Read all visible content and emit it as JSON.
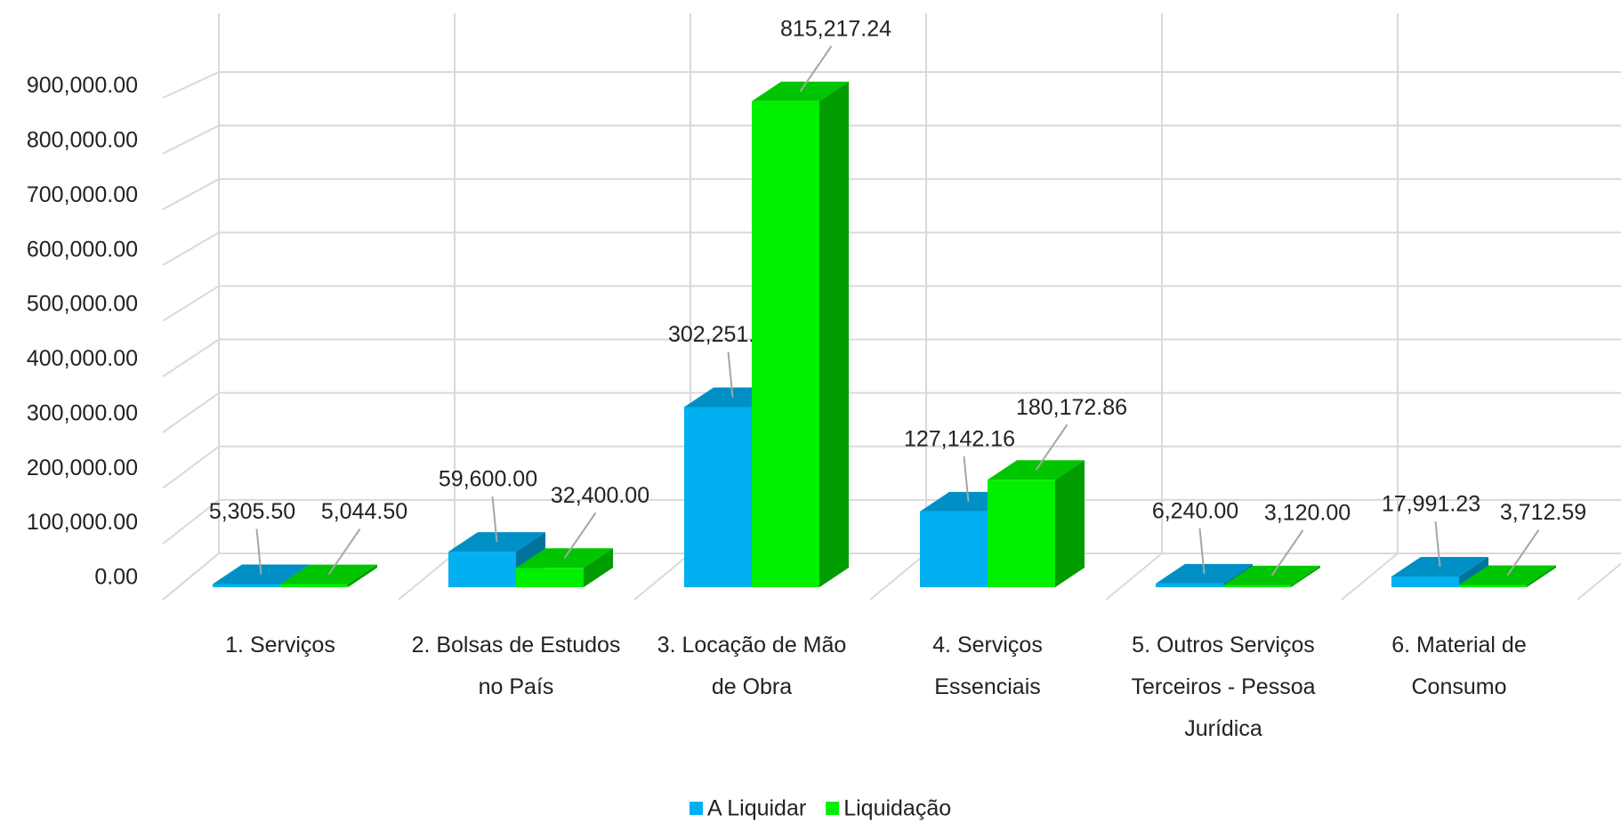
{
  "chart_data": {
    "type": "bar3d",
    "categories": [
      "1. Serviços",
      "2. Bolsas de Estudos no País",
      "3. Locação de Mão de Obra",
      "4. Serviços Essenciais",
      "5. Outros Serviços Terceiros - Pessoa Jurídica",
      "6. Material de Consumo"
    ],
    "series": [
      {
        "name": "A Liquidar",
        "color": "#00b0f0",
        "values": [
          5305.5,
          59600.0,
          302251.24,
          127142.16,
          6240.0,
          17991.23
        ],
        "value_labels": [
          "5,305.50",
          "59,600.00",
          "302,251.24",
          "127,142.16",
          "6,240.00",
          "17,991.23"
        ]
      },
      {
        "name": "Liquidação",
        "color": "#00f000",
        "values": [
          5044.5,
          32400.0,
          815217.24,
          180172.86,
          3120.0,
          3712.59
        ],
        "value_labels": [
          "5,044.50",
          "32,400.00",
          "815,217.24",
          "180,172.86",
          "3,120.00",
          "3,712.59"
        ]
      }
    ],
    "ylim": [
      0,
      900000
    ],
    "yticks": [
      {
        "value": 0,
        "label": "0.00"
      },
      {
        "value": 100000,
        "label": "100,000.00"
      },
      {
        "value": 200000,
        "label": "200,000.00"
      },
      {
        "value": 300000,
        "label": "300,000.00"
      },
      {
        "value": 400000,
        "label": "400,000.00"
      },
      {
        "value": 500000,
        "label": "500,000.00"
      },
      {
        "value": 600000,
        "label": "600,000.00"
      },
      {
        "value": 700000,
        "label": "700,000.00"
      },
      {
        "value": 800000,
        "label": "800,000.00"
      },
      {
        "value": 900000,
        "label": "900,000.00"
      }
    ],
    "grid": true,
    "legend": "bottom"
  }
}
